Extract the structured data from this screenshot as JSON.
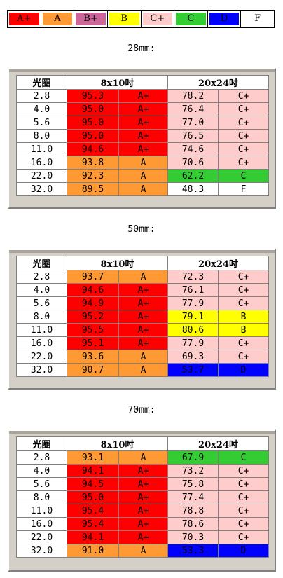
{
  "legend": [
    {
      "label": "A+",
      "color": "#ff0000"
    },
    {
      "label": "A",
      "color": "#ff9933"
    },
    {
      "label": "B+",
      "color": "#cc6699"
    },
    {
      "label": "B",
      "color": "#ffff00"
    },
    {
      "label": "C+",
      "color": "#ffcccc"
    },
    {
      "label": "C",
      "color": "#33cc33"
    },
    {
      "label": "D",
      "color": "#0000ff"
    },
    {
      "label": "F",
      "color": "#ffffff"
    }
  ],
  "headers": {
    "aperture": "光圈",
    "size1": "8x10吋",
    "size2": "20x24吋"
  },
  "tables": [
    {
      "title": "28mm:",
      "rows": [
        [
          "2.8",
          "95.3",
          "A+",
          "78.2",
          "C+"
        ],
        [
          "4.0",
          "95.0",
          "A+",
          "76.4",
          "C+"
        ],
        [
          "5.6",
          "95.0",
          "A+",
          "77.0",
          "C+"
        ],
        [
          "8.0",
          "95.0",
          "A+",
          "76.5",
          "C+"
        ],
        [
          "11.0",
          "94.6",
          "A+",
          "74.6",
          "C+"
        ],
        [
          "16.0",
          "93.8",
          "A",
          "70.6",
          "C+"
        ],
        [
          "22.0",
          "92.3",
          "A",
          "62.2",
          "C"
        ],
        [
          "32.0",
          "89.5",
          "A",
          "48.3",
          "F"
        ]
      ]
    },
    {
      "title": "50mm:",
      "rows": [
        [
          "2.8",
          "93.7",
          "A",
          "72.3",
          "C+"
        ],
        [
          "4.0",
          "94.6",
          "A+",
          "76.1",
          "C+"
        ],
        [
          "5.6",
          "94.9",
          "A+",
          "77.9",
          "C+"
        ],
        [
          "8.0",
          "95.2",
          "A+",
          "79.1",
          "B"
        ],
        [
          "11.0",
          "95.5",
          "A+",
          "80.6",
          "B"
        ],
        [
          "16.0",
          "95.1",
          "A+",
          "77.9",
          "C+"
        ],
        [
          "22.0",
          "93.6",
          "A",
          "69.3",
          "C+"
        ],
        [
          "32.0",
          "90.7",
          "A",
          "53.7",
          "D"
        ]
      ]
    },
    {
      "title": "70mm:",
      "rows": [
        [
          "2.8",
          "93.1",
          "A",
          "67.9",
          "C"
        ],
        [
          "4.0",
          "94.1",
          "A+",
          "73.2",
          "C+"
        ],
        [
          "5.6",
          "94.5",
          "A+",
          "75.8",
          "C+"
        ],
        [
          "8.0",
          "95.0",
          "A+",
          "77.4",
          "C+"
        ],
        [
          "11.0",
          "95.4",
          "A+",
          "78.8",
          "C+"
        ],
        [
          "16.0",
          "95.4",
          "A+",
          "78.6",
          "C+"
        ],
        [
          "22.0",
          "94.1",
          "A+",
          "70.3",
          "C+"
        ],
        [
          "32.0",
          "91.0",
          "A",
          "53.3",
          "D"
        ]
      ]
    }
  ]
}
